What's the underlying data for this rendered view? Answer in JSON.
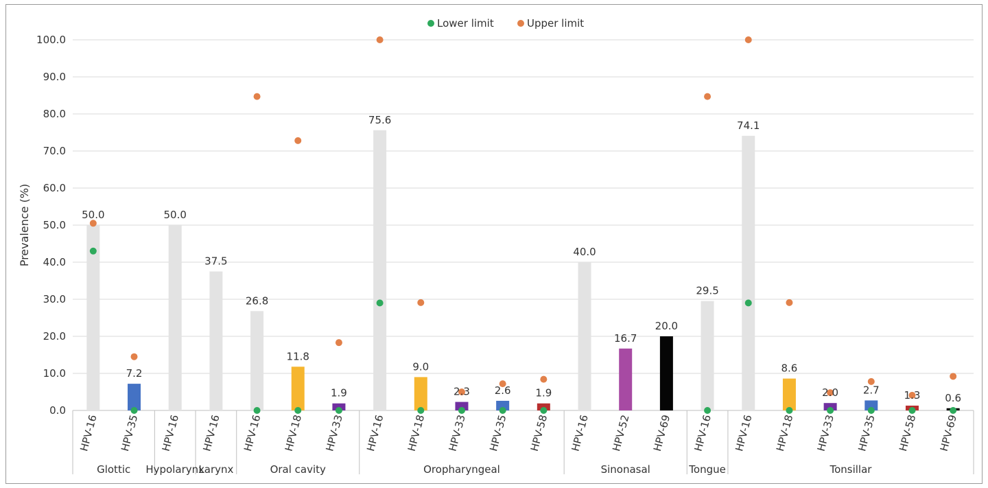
{
  "chart_data": {
    "type": "bar",
    "title": "",
    "xlabel": "",
    "ylabel": "Prevalence (%)",
    "ylim": [
      0,
      100
    ],
    "yticks": [
      "0.0",
      "10.0",
      "20.0",
      "30.0",
      "40.0",
      "50.0",
      "60.0",
      "70.0",
      "80.0",
      "90.0",
      "100.0"
    ],
    "grid": true,
    "legend_position": "top-center",
    "legend": [
      {
        "name": "Lower limit",
        "color": "#2eaa5c"
      },
      {
        "name": "Upper limit",
        "color": "#e2814a"
      }
    ],
    "groups": [
      {
        "name": "Glottic",
        "start": 0,
        "end": 1
      },
      {
        "name": "Hypolarynx",
        "start": 2,
        "end": 2
      },
      {
        "name": "Larynx",
        "start": 3,
        "end": 3
      },
      {
        "name": "Oral cavity",
        "start": 4,
        "end": 6
      },
      {
        "name": "Oropharyngeal",
        "start": 7,
        "end": 11
      },
      {
        "name": "Sinonasal",
        "start": 12,
        "end": 14
      },
      {
        "name": "Tongue",
        "start": 15,
        "end": 15
      },
      {
        "name": "Tonsillar",
        "start": 16,
        "end": 21
      }
    ],
    "bars": [
      {
        "category": "HPV-16",
        "value": 50.0,
        "label": "50.0",
        "color": "#e3e3e3",
        "lower": 43.0,
        "upper": 50.5
      },
      {
        "category": "HPV-35",
        "value": 7.2,
        "label": "7.2",
        "color": "#4472c4",
        "lower": 0.0,
        "upper": 14.5
      },
      {
        "category": "HPV-16",
        "value": 50.0,
        "label": "50.0",
        "color": "#e3e3e3",
        "lower": null,
        "upper": null
      },
      {
        "category": "HPV-16",
        "value": 37.5,
        "label": "37.5",
        "color": "#e3e3e3",
        "lower": null,
        "upper": null
      },
      {
        "category": "HPV-16",
        "value": 26.8,
        "label": "26.8",
        "color": "#e3e3e3",
        "lower": 0.0,
        "upper": 84.7
      },
      {
        "category": "HPV-18",
        "value": 11.8,
        "label": "11.8",
        "color": "#f6b62f",
        "lower": 0.0,
        "upper": 72.8
      },
      {
        "category": "HPV-33",
        "value": 1.9,
        "label": "1.9",
        "color": "#7030a0",
        "lower": 0.0,
        "upper": 18.3
      },
      {
        "category": "HPV-16",
        "value": 75.6,
        "label": "75.6",
        "color": "#e3e3e3",
        "lower": 29.0,
        "upper": 100.0
      },
      {
        "category": "HPV-18",
        "value": 9.0,
        "label": "9.0",
        "color": "#f6b62f",
        "lower": 0.0,
        "upper": 29.1
      },
      {
        "category": "HPV-33",
        "value": 2.3,
        "label": "2.3",
        "color": "#7030a0",
        "lower": 0.0,
        "upper": 5.0
      },
      {
        "category": "HPV-35",
        "value": 2.6,
        "label": "2.6",
        "color": "#4472c4",
        "lower": 0.0,
        "upper": 7.2
      },
      {
        "category": "HPV-58",
        "value": 1.9,
        "label": "1.9",
        "color": "#b82f2f",
        "lower": 0.0,
        "upper": 8.4
      },
      {
        "category": "HPV-16",
        "value": 40.0,
        "label": "40.0",
        "color": "#e3e3e3",
        "lower": null,
        "upper": null
      },
      {
        "category": "HPV-52",
        "value": 16.7,
        "label": "16.7",
        "color": "#a74aa3",
        "lower": null,
        "upper": null
      },
      {
        "category": "HPV-69",
        "value": 20.0,
        "label": "20.0",
        "color": "#050505",
        "lower": null,
        "upper": null
      },
      {
        "category": "HPV-16",
        "value": 29.5,
        "label": "29.5",
        "color": "#e3e3e3",
        "lower": 0.0,
        "upper": 84.7
      },
      {
        "category": "HPV-16",
        "value": 74.1,
        "label": "74.1",
        "color": "#e3e3e3",
        "lower": 29.0,
        "upper": 100.0
      },
      {
        "category": "HPV-18",
        "value": 8.6,
        "label": "8.6",
        "color": "#f6b62f",
        "lower": 0.0,
        "upper": 29.1
      },
      {
        "category": "HPV-33",
        "value": 2.0,
        "label": "2.0",
        "color": "#7030a0",
        "lower": 0.0,
        "upper": 4.8
      },
      {
        "category": "HPV-35",
        "value": 2.7,
        "label": "2.7",
        "color": "#4472c4",
        "lower": 0.0,
        "upper": 7.8
      },
      {
        "category": "HPV-58",
        "value": 1.3,
        "label": "1.3",
        "color": "#b82f2f",
        "lower": 0.0,
        "upper": 4.1
      },
      {
        "category": "HPV-69",
        "value": 0.6,
        "label": "0.6",
        "color": "#050505",
        "lower": 0.0,
        "upper": 9.2
      }
    ],
    "colors": {
      "grid": "#d9d9d9",
      "axis": "#bfbfbf",
      "text": "#333333"
    }
  }
}
